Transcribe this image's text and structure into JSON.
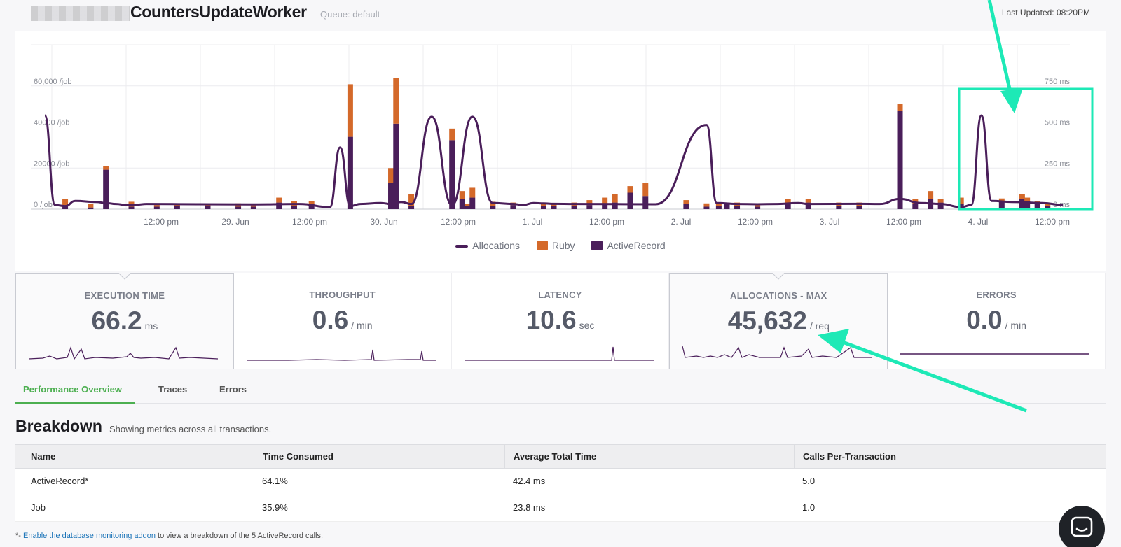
{
  "header": {
    "title": "CountersUpdateWorker",
    "queue": "Queue: default",
    "last_updated": "Last Updated: 08:20PM"
  },
  "chart_data": {
    "type": "bar",
    "title": "",
    "y_left_ticks": [
      "60,000 /job",
      "40000 /job",
      "20000 /job",
      "0 /job"
    ],
    "y_right_ticks": [
      "750 ms",
      "500 ms",
      "250 ms",
      "0 ms"
    ],
    "x_ticks": [
      "12:00 pm",
      "29. Jun",
      "12:00 pm",
      "30. Jun",
      "12:00 pm",
      "1. Jul",
      "12:00 pm",
      "2. Jul",
      "12:00 pm",
      "3. Jul",
      "12:00 pm",
      "4. Jul",
      "12:00 pm"
    ],
    "ylim_left": [
      0,
      80000
    ],
    "ylim_right": [
      0,
      1000
    ],
    "legend": [
      "Allocations",
      "Ruby",
      "ActiveRecord"
    ],
    "legend_position": "bottom",
    "grid": true,
    "colors": {
      "allocations": "#4a1e5a",
      "ruby": "#d4692a",
      "activerecord": "#4a1e5a"
    },
    "series": [
      {
        "name": "ActiveRecord",
        "unit": "ms",
        "x": [
          0.02,
          0.045,
          0.06,
          0.085,
          0.11,
          0.13,
          0.16,
          0.19,
          0.205,
          0.23,
          0.245,
          0.262,
          0.3,
          0.34,
          0.345,
          0.36,
          0.4,
          0.41,
          0.415,
          0.42,
          0.44,
          0.46,
          0.49,
          0.5,
          0.52,
          0.535,
          0.55,
          0.56,
          0.575,
          0.59,
          0.63,
          0.65,
          0.662,
          0.67,
          0.68,
          0.7,
          0.73,
          0.75,
          0.78,
          0.8,
          0.84,
          0.855,
          0.87,
          0.88,
          0.9,
          0.94,
          0.96,
          0.965,
          0.975,
          0.985
        ],
        "values": [
          20,
          10,
          240,
          15,
          15,
          18,
          20,
          15,
          15,
          40,
          20,
          30,
          440,
          160,
          520,
          20,
          420,
          60,
          20,
          70,
          20,
          25,
          20,
          20,
          20,
          25,
          30,
          40,
          100,
          80,
          30,
          15,
          20,
          30,
          20,
          15,
          30,
          40,
          20,
          20,
          600,
          30,
          60,
          40,
          30,
          45,
          60,
          50,
          30,
          20
        ]
      },
      {
        "name": "Ruby",
        "unit": "ms",
        "x": [
          0.02,
          0.045,
          0.06,
          0.085,
          0.11,
          0.13,
          0.16,
          0.19,
          0.205,
          0.23,
          0.245,
          0.262,
          0.3,
          0.34,
          0.345,
          0.36,
          0.4,
          0.41,
          0.415,
          0.42,
          0.44,
          0.46,
          0.49,
          0.5,
          0.52,
          0.535,
          0.55,
          0.56,
          0.575,
          0.59,
          0.63,
          0.65,
          0.662,
          0.67,
          0.68,
          0.7,
          0.73,
          0.75,
          0.78,
          0.8,
          0.84,
          0.855,
          0.87,
          0.88,
          0.9,
          0.94,
          0.96,
          0.965,
          0.975,
          0.985
        ],
        "values": [
          40,
          20,
          20,
          30,
          10,
          15,
          10,
          20,
          15,
          30,
          30,
          20,
          320,
          90,
          280,
          70,
          70,
          50,
          10,
          60,
          25,
          15,
          20,
          15,
          20,
          30,
          40,
          50,
          40,
          80,
          25,
          20,
          20,
          10,
          20,
          10,
          30,
          20,
          20,
          20,
          40,
          30,
          50,
          20,
          40,
          20,
          30,
          20,
          20,
          10
        ]
      },
      {
        "name": "Allocations",
        "unit": "/job",
        "x": [
          0.0,
          0.01,
          0.02,
          0.03,
          0.05,
          0.06,
          0.07,
          0.08,
          0.09,
          0.1,
          0.15,
          0.2,
          0.25,
          0.28,
          0.29,
          0.3,
          0.31,
          0.33,
          0.34,
          0.35,
          0.36,
          0.38,
          0.4,
          0.42,
          0.44,
          0.46,
          0.47,
          0.48,
          0.49,
          0.5,
          0.52,
          0.6,
          0.65,
          0.66,
          0.68,
          0.7,
          0.72,
          0.74,
          0.75,
          0.8,
          0.82,
          0.84,
          0.86,
          0.88,
          0.9,
          0.91,
          0.92,
          0.93,
          0.95,
          0.98,
          1.0
        ],
        "values": [
          45632,
          2000,
          1500,
          4000,
          3500,
          3000,
          2500,
          2000,
          2200,
          2500,
          2400,
          2300,
          2500,
          1000,
          30000,
          1500,
          2500,
          3000,
          2500,
          3500,
          2500,
          45000,
          2000,
          45000,
          3000,
          2500,
          2000,
          3000,
          2800,
          2600,
          2500,
          2400,
          41000,
          3000,
          2500,
          2400,
          2500,
          3000,
          2500,
          2600,
          2500,
          5000,
          3000,
          2500,
          1000,
          2000,
          45632,
          4000,
          3500,
          3000,
          2000
        ]
      }
    ]
  },
  "legend": {
    "allocations": "Allocations",
    "ruby": "Ruby",
    "activerecord": "ActiveRecord"
  },
  "cards": [
    {
      "label": "EXECUTION TIME",
      "value": "66.2",
      "unit": "ms",
      "active": true
    },
    {
      "label": "THROUGHPUT",
      "value": "0.6",
      "unit": "/ min",
      "active": false
    },
    {
      "label": "LATENCY",
      "value": "10.6",
      "unit": "sec",
      "active": false
    },
    {
      "label": "ALLOCATIONS - MAX",
      "value": "45,632",
      "unit": "/ req",
      "active": true
    },
    {
      "label": "ERRORS",
      "value": "0.0",
      "unit": "/ min",
      "active": false
    }
  ],
  "tabs": [
    "Performance Overview",
    "Traces",
    "Errors"
  ],
  "breakdown": {
    "title": "Breakdown",
    "subtitle": "Showing metrics across all transactions.",
    "columns": [
      "Name",
      "Time Consumed",
      "Average Total Time",
      "Calls Per-Transaction"
    ],
    "rows": [
      [
        "ActiveRecord*",
        "64.1%",
        "42.4 ms",
        "5.0"
      ],
      [
        "Job",
        "35.9%",
        "23.8 ms",
        "1.0"
      ]
    ]
  },
  "footnote": {
    "prefix": "*- ",
    "link": "Enable the database monitoring addon",
    "suffix": " to view a breakdown of the 5 ActiveRecord calls."
  },
  "annotation_color": "#1de9b6"
}
